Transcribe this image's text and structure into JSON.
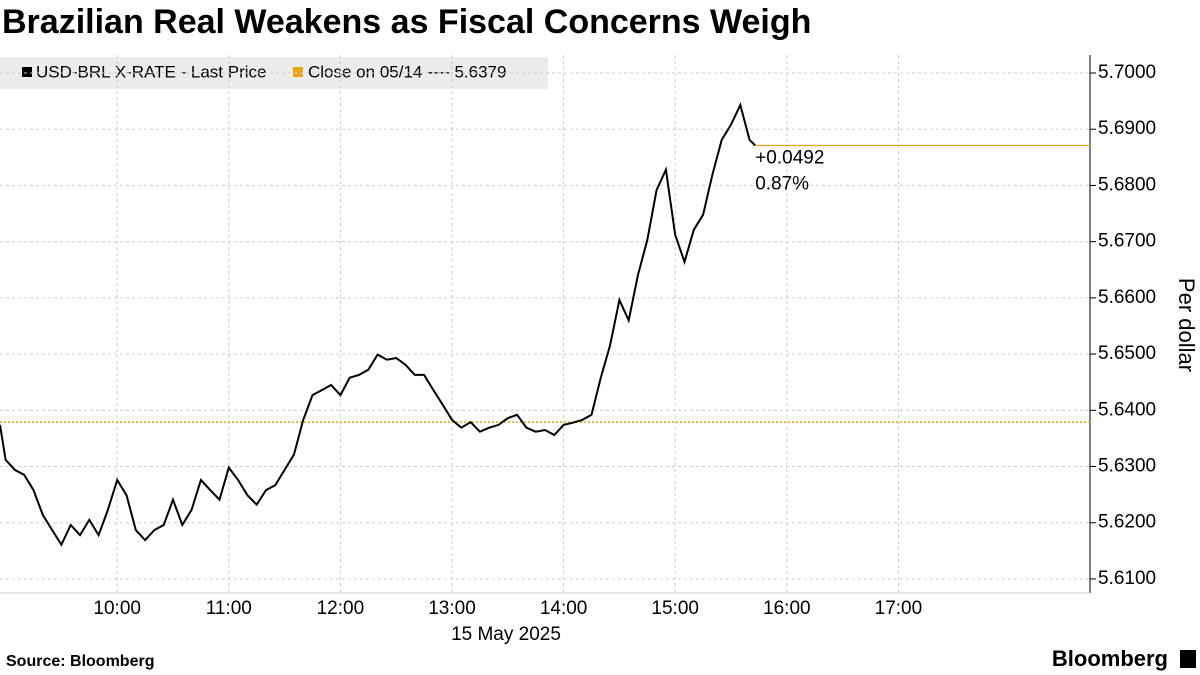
{
  "chart_data": {
    "type": "line",
    "title": "Brazilian Real Weakens as Fiscal Concerns Weigh",
    "y_label": "Per dollar",
    "x_caption": "15 May 2025",
    "source": "Source: Bloomberg",
    "brand": "Bloomberg",
    "x": [
      "08:57",
      "09:00",
      "09:05",
      "09:10",
      "09:15",
      "09:20",
      "09:25",
      "09:30",
      "09:35",
      "09:40",
      "09:45",
      "09:50",
      "09:55",
      "10:00",
      "10:05",
      "10:10",
      "10:15",
      "10:20",
      "10:25",
      "10:30",
      "10:35",
      "10:40",
      "10:45",
      "10:50",
      "10:55",
      "11:00",
      "11:05",
      "11:10",
      "11:15",
      "11:20",
      "11:25",
      "11:30",
      "11:35",
      "11:40",
      "11:45",
      "11:50",
      "11:55",
      "12:00",
      "12:05",
      "12:10",
      "12:15",
      "12:20",
      "12:25",
      "12:30",
      "12:35",
      "12:40",
      "12:45",
      "12:50",
      "12:55",
      "13:00",
      "13:05",
      "13:10",
      "13:15",
      "13:20",
      "13:25",
      "13:30",
      "13:35",
      "13:40",
      "13:45",
      "13:50",
      "13:55",
      "14:00",
      "14:05",
      "14:10",
      "14:15",
      "14:20",
      "14:25",
      "14:30",
      "14:35",
      "14:40",
      "14:45",
      "14:50",
      "14:55",
      "15:00",
      "15:05",
      "15:10",
      "15:15",
      "15:20",
      "15:25",
      "15:30",
      "15:35",
      "15:40",
      "15:43"
    ],
    "series": [
      {
        "name": "USD-BRL X-RATE - Last Price",
        "color": "#000000",
        "values": [
          5.6374,
          5.6312,
          5.6294,
          5.6285,
          5.6258,
          5.6214,
          5.6187,
          5.6161,
          5.6196,
          5.6178,
          5.6205,
          5.6178,
          5.6223,
          5.6276,
          5.6249,
          5.6187,
          5.6169,
          5.6187,
          5.6196,
          5.6241,
          5.6196,
          5.6223,
          5.6276,
          5.6258,
          5.6241,
          5.6298,
          5.6276,
          5.6249,
          5.6232,
          5.6258,
          5.6267,
          5.6294,
          5.6321,
          5.6383,
          5.6427,
          5.6436,
          5.6445,
          5.6427,
          5.6458,
          5.6463,
          5.6472,
          5.6499,
          5.649,
          5.6493,
          5.6481,
          5.6463,
          5.6463,
          5.6436,
          5.641,
          5.6383,
          5.6369,
          5.6379,
          5.6362,
          5.6369,
          5.6374,
          5.6386,
          5.6392,
          5.6369,
          5.6362,
          5.6365,
          5.6356,
          5.6374,
          5.6378,
          5.6383,
          5.6392,
          5.6458,
          5.6516,
          5.6596,
          5.656,
          5.6641,
          5.6703,
          5.6792,
          5.6828,
          5.6712,
          5.6664,
          5.6721,
          5.6748,
          5.6819,
          5.6881,
          5.6908,
          5.6943,
          5.6881,
          5.6871
        ]
      }
    ],
    "reference": {
      "name": "Close on 05/14 ---- 5.6379",
      "value": 5.6379,
      "color": "#e8a317"
    },
    "annotations": [
      "+0.0492",
      "0.87%"
    ],
    "xlim": [
      "08:57",
      "18:43"
    ],
    "xticks": [
      "10:00",
      "11:00",
      "12:00",
      "13:00",
      "14:00",
      "15:00",
      "16:00",
      "17:00"
    ],
    "ylim": [
      5.6075,
      5.7032
    ],
    "yticks": [
      {
        "value": 5.61,
        "label": "5.6100"
      },
      {
        "value": 5.62,
        "label": "5.6200"
      },
      {
        "value": 5.63,
        "label": "5.6300"
      },
      {
        "value": 5.64,
        "label": "5.6400"
      },
      {
        "value": 5.65,
        "label": "5.6500"
      },
      {
        "value": 5.66,
        "label": "5.6600"
      },
      {
        "value": 5.67,
        "label": "5.6700"
      },
      {
        "value": 5.68,
        "label": "5.6800"
      },
      {
        "value": 5.69,
        "label": "5.6900"
      },
      {
        "value": 5.7,
        "label": "5.7000"
      }
    ],
    "grid": true
  }
}
